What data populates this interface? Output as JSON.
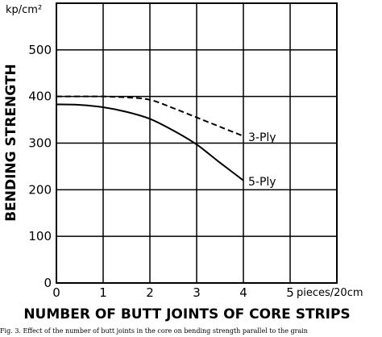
{
  "chart_data": {
    "type": "line",
    "title": "",
    "xlabel": "NUMBER OF BUTT JOINTS OF CORE STRIPS",
    "x_unit": "pieces/20cm",
    "ylabel": "BENDING STRENGTH",
    "y_unit": "kp/cm²",
    "xlim": [
      0,
      6
    ],
    "ylim": [
      0,
      600
    ],
    "x_ticks": [
      "0",
      "1",
      "2",
      "3",
      "4",
      "5"
    ],
    "y_ticks": [
      "0",
      "100",
      "200",
      "300",
      "400",
      "500"
    ],
    "grid": true,
    "series": [
      {
        "name": "3-Ply",
        "style": "dashed",
        "x": [
          0,
          0.5,
          1,
          1.5,
          2,
          2.5,
          3,
          3.5,
          4
        ],
        "y": [
          400,
          400,
          400,
          398,
          393,
          375,
          355,
          335,
          315
        ]
      },
      {
        "name": "5-Ply",
        "style": "solid",
        "x": [
          0,
          0.5,
          1,
          1.5,
          2,
          2.5,
          3,
          3.5,
          4
        ],
        "y": [
          383,
          382,
          377,
          367,
          352,
          327,
          297,
          258,
          220
        ]
      }
    ],
    "caption": "Fig. 3. Effect of the number of butt joints in the core on bending strength parallel to the grain"
  }
}
